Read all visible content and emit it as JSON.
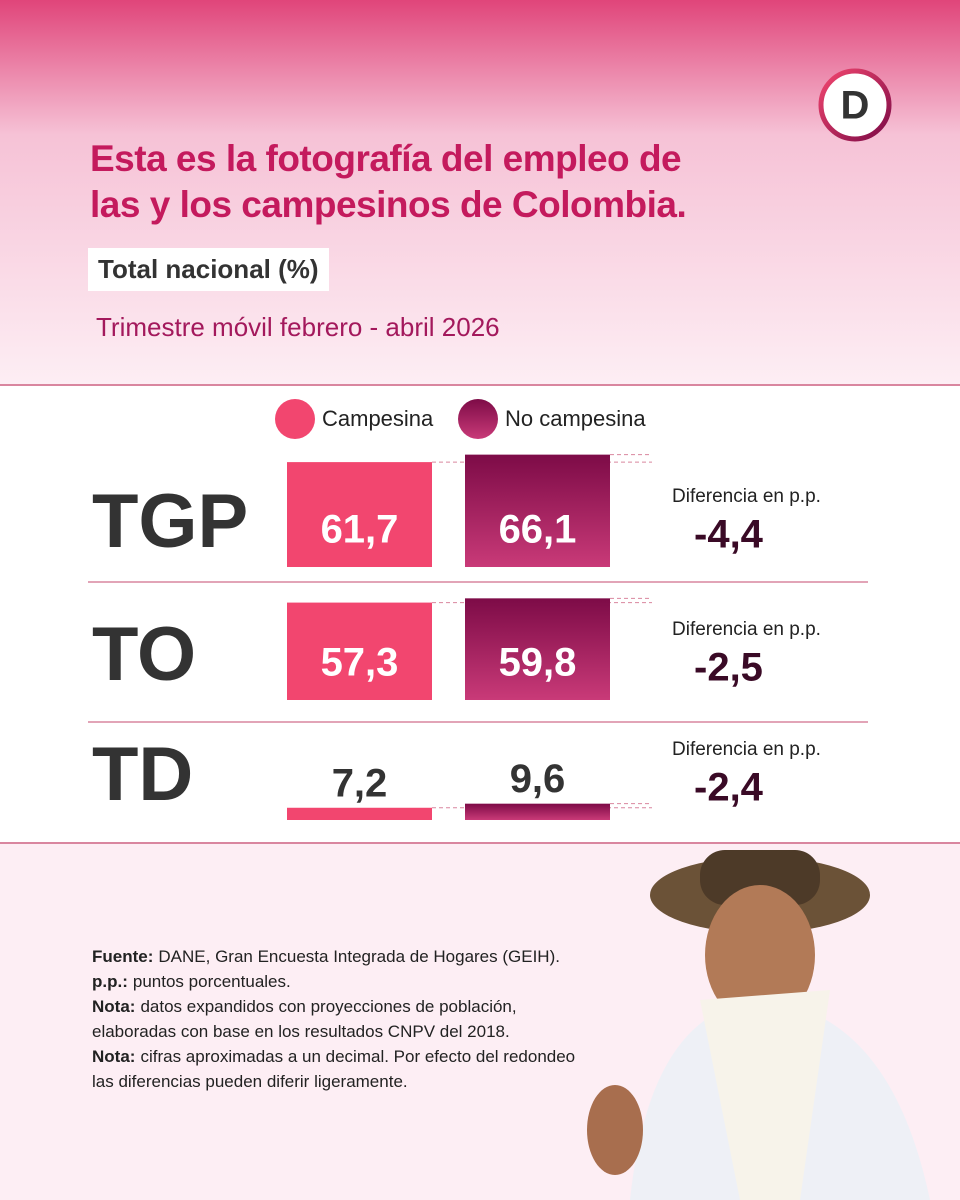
{
  "chart_data": {
    "type": "bar",
    "logo": "D",
    "title": "Esta es la fotografía del empleo de las y los campesinos de Colombia.",
    "subtitle": "Total nacional (%)",
    "period": "Trimestre móvil febrero - abril 2026",
    "categories": [
      "TGP",
      "TO",
      "TD"
    ],
    "series": [
      {
        "name": "Campesina",
        "color": "#f2466f",
        "values": [
          61.7,
          57.3,
          7.2
        ],
        "value_labels": [
          "61,7",
          "57,3",
          "7,2"
        ]
      },
      {
        "name": "No campesina",
        "color": "#7d0b47",
        "values": [
          66.1,
          59.8,
          9.6
        ],
        "value_labels": [
          "66,1",
          "59,8",
          "9,6"
        ]
      }
    ],
    "ylim": [
      0,
      70
    ],
    "difference_label": "Diferencia en p.p.",
    "differences": {
      "values": [
        -4.4,
        -2.5,
        -2.4
      ],
      "value_labels": [
        "-4,4",
        "-2,5",
        "-2,4"
      ]
    },
    "notes": [
      {
        "label": "Fuente:",
        "text": "DANE, Gran Encuesta Integrada de Hogares (GEIH)."
      },
      {
        "label": "p.p.:",
        "text": "puntos porcentuales."
      },
      {
        "label": "Nota:",
        "text": "datos expandidos con proyecciones de población, elaboradas con base en los resultados CNPV del 2018."
      },
      {
        "label": "Nota:",
        "text": "cifras aproximadas a un decimal. Por efecto del redondeo las diferencias pueden diferir ligeramente."
      }
    ]
  }
}
